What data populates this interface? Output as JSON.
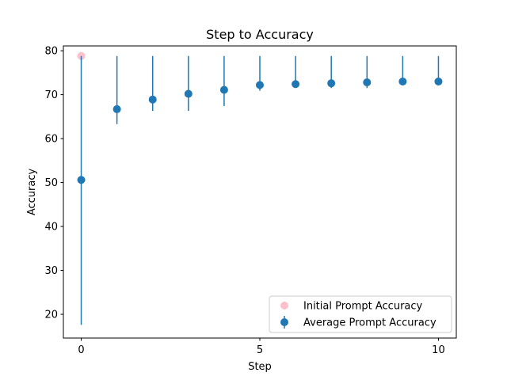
{
  "chart_data": {
    "type": "scatter",
    "title": "Step to Accuracy",
    "xlabel": "Step",
    "ylabel": "Accuracy",
    "xlim": [
      -0.5,
      10.5
    ],
    "ylim": [
      14.6,
      81.1
    ],
    "xticks": [
      0,
      5,
      10
    ],
    "yticks": [
      20,
      30,
      40,
      50,
      60,
      70,
      80
    ],
    "legend_position": "lower-right",
    "grid": false,
    "series": [
      {
        "name": "Initial Prompt Accuracy",
        "kind": "points",
        "color": "#ffc0cb",
        "x": [
          0
        ],
        "y": [
          78.8
        ]
      },
      {
        "name": "Average Prompt Accuracy",
        "kind": "errorbar",
        "color": "#1f77b4",
        "x": [
          0,
          1,
          2,
          3,
          4,
          5,
          6,
          7,
          8,
          9,
          10
        ],
        "y": [
          50.6,
          66.7,
          68.9,
          70.2,
          71.1,
          72.2,
          72.4,
          72.6,
          72.8,
          73.0,
          73.0
        ],
        "err_low": [
          17.6,
          63.3,
          66.3,
          66.3,
          67.4,
          70.9,
          71.7,
          71.5,
          71.5,
          72.4,
          72.8
        ],
        "err_high": [
          78.8,
          78.8,
          78.8,
          78.8,
          78.8,
          78.8,
          78.8,
          78.8,
          78.8,
          78.8,
          78.8
        ]
      }
    ]
  }
}
